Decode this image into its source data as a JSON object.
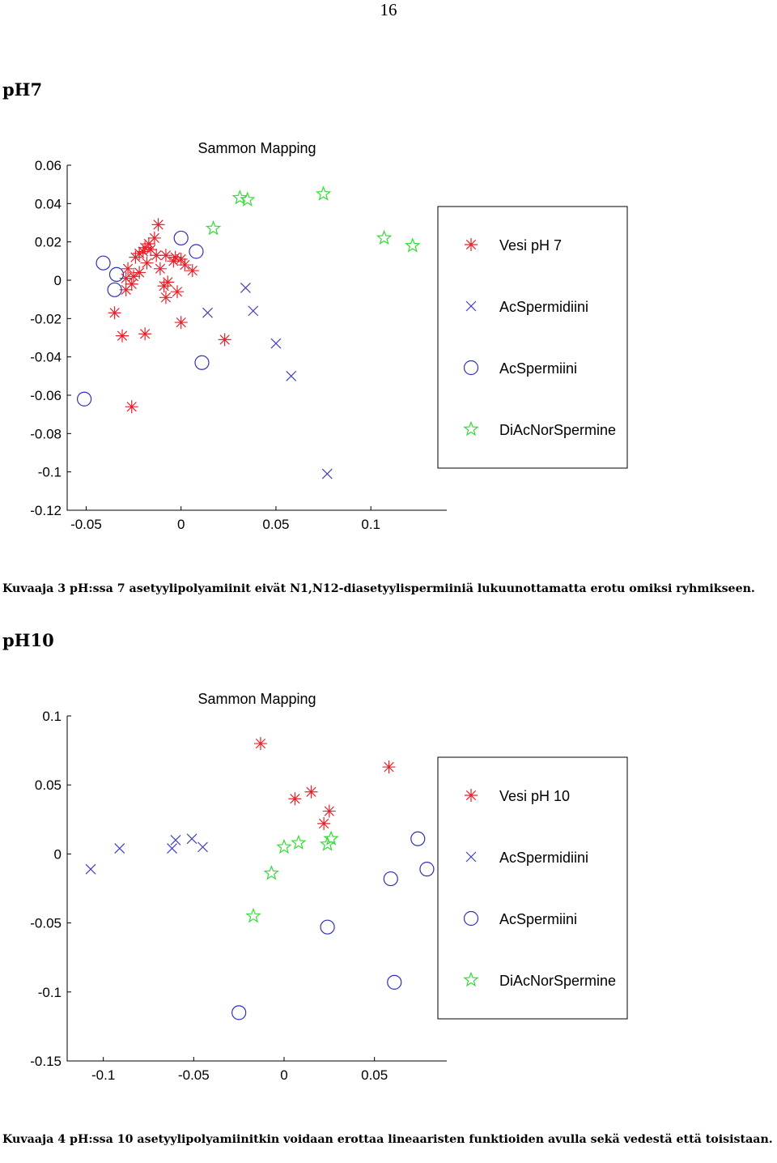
{
  "page": {
    "number": "16"
  },
  "sections": [
    {
      "heading": "pH7",
      "caption": "Kuvaaja 3 pH:ssa 7 asetyylipolyamiinit eivät N1,N12-diasetyylispermiiniä lukuunottamatta erotu omiksi ryhmikseen."
    },
    {
      "heading": "pH10",
      "caption": "Kuvaaja 4 pH:ssa 10 asetyylipolyamiinitkin voidaan erottaa lineaaristen funktioiden avulla sekä vedestä että toisistaan."
    }
  ],
  "colors": {
    "vesi": "#e8202a",
    "acspermidiini": "#4040c0",
    "acspermiini": "#3030b8",
    "diacnorspermine": "#33dd33"
  },
  "chart_data": [
    {
      "type": "scatter",
      "title": "Sammon Mapping",
      "xlim": [
        -0.06,
        0.14
      ],
      "ylim": [
        -0.12,
        0.06
      ],
      "xticks": [
        -0.05,
        0,
        0.05,
        0.1
      ],
      "xtick_labels": [
        "-0.05",
        "0",
        "0.05",
        "0.1"
      ],
      "yticks": [
        0.06,
        0.04,
        0.02,
        0,
        -0.02,
        -0.04,
        -0.06,
        -0.08,
        -0.1,
        -0.12
      ],
      "ytick_labels": [
        "0.06",
        "0.04",
        "0.02",
        "0",
        "-0.02",
        "-0.04",
        "-0.06",
        "-0.08",
        "-0.1",
        "-0.12"
      ],
      "legend_position": "right",
      "series": [
        {
          "name": "Vesi pH 7",
          "marker": "asterisk",
          "color": "#e8202a",
          "points": [
            [
              -0.012,
              0.029
            ],
            [
              -0.014,
              0.022
            ],
            [
              -0.017,
              0.019
            ],
            [
              -0.019,
              0.017
            ],
            [
              -0.016,
              0.016
            ],
            [
              -0.02,
              0.015
            ],
            [
              -0.022,
              0.014
            ],
            [
              -0.013,
              0.013
            ],
            [
              -0.024,
              0.012
            ],
            [
              -0.008,
              0.013
            ],
            [
              -0.003,
              0.012
            ],
            [
              0.0,
              0.011
            ],
            [
              -0.004,
              0.01
            ],
            [
              -0.018,
              0.009
            ],
            [
              0.002,
              0.008
            ],
            [
              -0.028,
              0.006
            ],
            [
              -0.011,
              0.006
            ],
            [
              0.006,
              0.005
            ],
            [
              -0.022,
              0.004
            ],
            [
              -0.025,
              0.002
            ],
            [
              -0.029,
              0.001
            ],
            [
              -0.007,
              -0.001
            ],
            [
              -0.026,
              -0.002
            ],
            [
              -0.009,
              -0.003
            ],
            [
              -0.029,
              -0.005
            ],
            [
              -0.002,
              -0.006
            ],
            [
              -0.008,
              -0.009
            ],
            [
              -0.035,
              -0.017
            ],
            [
              0.0,
              -0.022
            ],
            [
              -0.031,
              -0.029
            ],
            [
              -0.019,
              -0.028
            ],
            [
              0.023,
              -0.031
            ],
            [
              -0.026,
              -0.066
            ]
          ]
        },
        {
          "name": "AcSpermidiini",
          "marker": "x",
          "color": "#4040c0",
          "points": [
            [
              0.034,
              -0.004
            ],
            [
              0.014,
              -0.017
            ],
            [
              0.038,
              -0.016
            ],
            [
              0.05,
              -0.033
            ],
            [
              0.058,
              -0.05
            ],
            [
              0.077,
              -0.101
            ]
          ]
        },
        {
          "name": "AcSpermiini",
          "marker": "circle",
          "color": "#3030b8",
          "points": [
            [
              -0.041,
              0.009
            ],
            [
              0.0,
              0.022
            ],
            [
              0.008,
              0.015
            ],
            [
              -0.034,
              0.003
            ],
            [
              -0.035,
              -0.005
            ],
            [
              0.011,
              -0.043
            ],
            [
              -0.051,
              -0.062
            ]
          ]
        },
        {
          "name": "DiAcNorSpermine",
          "marker": "star",
          "color": "#33dd33",
          "points": [
            [
              0.031,
              0.043
            ],
            [
              0.035,
              0.042
            ],
            [
              0.075,
              0.045
            ],
            [
              0.017,
              0.027
            ],
            [
              0.107,
              0.022
            ],
            [
              0.122,
              0.018
            ]
          ]
        }
      ]
    },
    {
      "type": "scatter",
      "title": "Sammon Mapping",
      "xlim": [
        -0.12,
        0.09
      ],
      "ylim": [
        -0.15,
        0.1
      ],
      "xticks": [
        -0.1,
        -0.05,
        0,
        0.05
      ],
      "xtick_labels": [
        "-0.1",
        "-0.05",
        "0",
        "0.05"
      ],
      "yticks": [
        0.1,
        0.05,
        0,
        -0.05,
        -0.1,
        -0.15
      ],
      "ytick_labels": [
        "0.1",
        "0.05",
        "0",
        "-0.05",
        "-0.1",
        "-0.15"
      ],
      "legend_position": "right",
      "series": [
        {
          "name": "Vesi pH 10",
          "marker": "asterisk",
          "color": "#e8202a",
          "points": [
            [
              -0.013,
              0.08
            ],
            [
              0.058,
              0.063
            ],
            [
              0.015,
              0.045
            ],
            [
              0.006,
              0.04
            ],
            [
              0.025,
              0.031
            ],
            [
              0.022,
              0.022
            ]
          ]
        },
        {
          "name": "AcSpermidiini",
          "marker": "x",
          "color": "#4040c0",
          "points": [
            [
              -0.107,
              -0.011
            ],
            [
              -0.091,
              0.004
            ],
            [
              -0.06,
              0.01
            ],
            [
              -0.051,
              0.011
            ],
            [
              -0.062,
              0.004
            ],
            [
              -0.045,
              0.005
            ]
          ]
        },
        {
          "name": "AcSpermiini",
          "marker": "circle",
          "color": "#3030b8",
          "points": [
            [
              0.074,
              0.011
            ],
            [
              0.079,
              -0.011
            ],
            [
              0.059,
              -0.018
            ],
            [
              0.024,
              -0.053
            ],
            [
              0.061,
              -0.093
            ],
            [
              -0.025,
              -0.115
            ]
          ]
        },
        {
          "name": "DiAcNorSpermine",
          "marker": "star",
          "color": "#33dd33",
          "points": [
            [
              0.026,
              0.011
            ],
            [
              0.024,
              0.007
            ],
            [
              0.008,
              0.008
            ],
            [
              0.0,
              0.005
            ],
            [
              -0.007,
              -0.014
            ],
            [
              -0.017,
              -0.045
            ]
          ]
        }
      ]
    }
  ]
}
